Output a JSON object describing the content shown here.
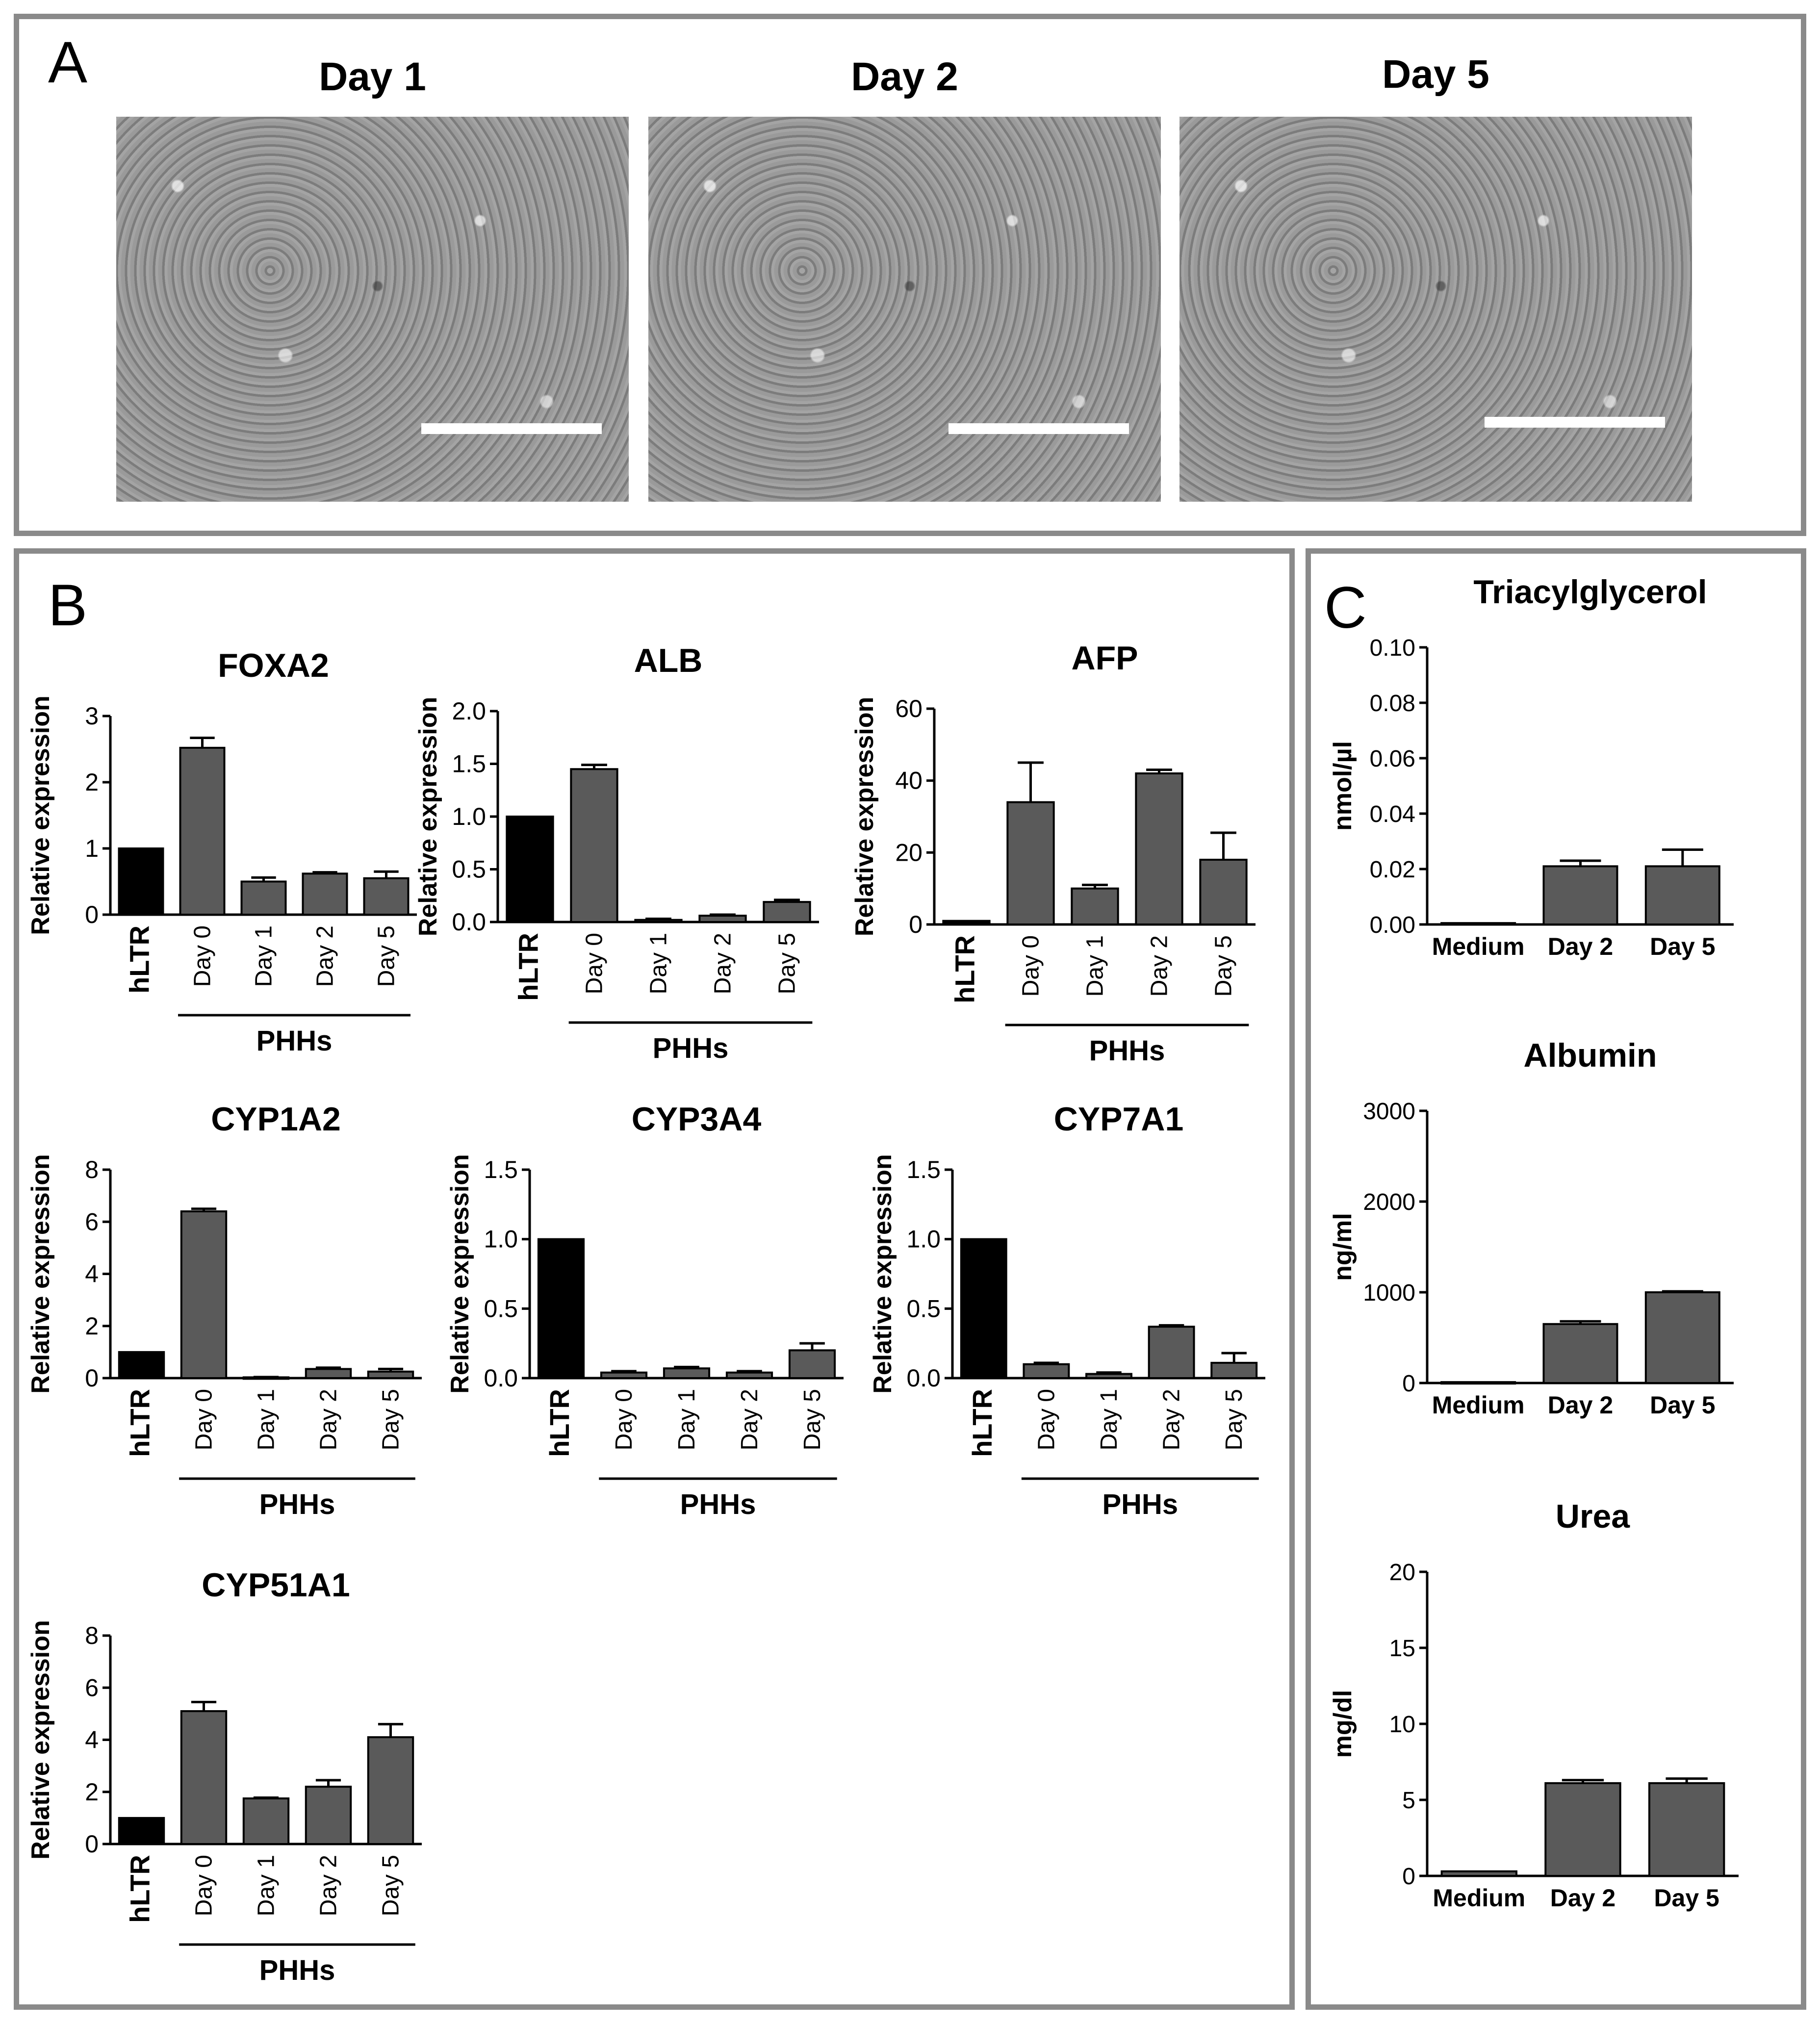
{
  "panel_labels": {
    "a": "A",
    "b": "B",
    "c": "C"
  },
  "micrographs": [
    {
      "title": "Day 1"
    },
    {
      "title": "Day 2"
    },
    {
      "title": "Day 5"
    }
  ],
  "colors": {
    "hLTR": "#000000",
    "PHHs": "#5a5a5a",
    "frame": "#8a8a8a"
  },
  "chart_data": [
    {
      "id": "FOXA2",
      "type": "bar",
      "title": "FOXA2",
      "ylabel": "Relative expression",
      "group_label": "PHHs",
      "categories": [
        "hLTR",
        "Day 0",
        "Day 1",
        "Day 2",
        "Day 5"
      ],
      "values": [
        1.0,
        2.52,
        0.5,
        0.62,
        0.55
      ],
      "errors": [
        0,
        0.15,
        0.06,
        0.02,
        0.1
      ],
      "ylim": [
        0,
        3
      ],
      "yticks": [
        0,
        1,
        2,
        3
      ],
      "ytick_labels": [
        "0",
        "1",
        "2",
        "3"
      ]
    },
    {
      "id": "ALB",
      "type": "bar",
      "title": "ALB",
      "ylabel": "Relative expression",
      "group_label": "PHHs",
      "categories": [
        "hLTR",
        "Day 0",
        "Day 1",
        "Day 2",
        "Day 5"
      ],
      "values": [
        1.0,
        1.45,
        0.02,
        0.06,
        0.19
      ],
      "errors": [
        0,
        0.04,
        0.01,
        0.01,
        0.02
      ],
      "ylim": [
        0,
        2
      ],
      "yticks": [
        0,
        0.5,
        1,
        1.5,
        2
      ],
      "ytick_labels": [
        "0.0",
        "0.5",
        "1.0",
        "1.5",
        "2.0"
      ]
    },
    {
      "id": "AFP",
      "type": "bar",
      "title": "AFP",
      "ylabel": "Relative expression",
      "group_label": "PHHs",
      "categories": [
        "hLTR",
        "Day 0",
        "Day 1",
        "Day 2",
        "Day 5"
      ],
      "values": [
        1,
        34,
        10,
        42,
        18
      ],
      "errors": [
        0,
        11,
        1,
        1,
        7.5
      ],
      "ylim": [
        0,
        60
      ],
      "yticks": [
        0,
        20,
        40,
        60
      ],
      "ytick_labels": [
        "0",
        "20",
        "40",
        "60"
      ]
    },
    {
      "id": "CYP1A2",
      "type": "bar",
      "title": "CYP1A2",
      "ylabel": "Relative expression",
      "group_label": "PHHs",
      "categories": [
        "hLTR",
        "Day 0",
        "Day 1",
        "Day 2",
        "Day 5"
      ],
      "values": [
        1.0,
        6.4,
        0.03,
        0.35,
        0.25
      ],
      "errors": [
        0,
        0.1,
        0.01,
        0.05,
        0.1
      ],
      "ylim": [
        0,
        8
      ],
      "yticks": [
        0,
        2,
        4,
        6,
        8
      ],
      "ytick_labels": [
        "0",
        "2",
        "4",
        "6",
        "8"
      ]
    },
    {
      "id": "CYP3A4",
      "type": "bar",
      "title": "CYP3A4",
      "ylabel": "Relative expression",
      "group_label": "PHHs",
      "categories": [
        "hLTR",
        "Day 0",
        "Day 1",
        "Day 2",
        "Day 5"
      ],
      "values": [
        1.0,
        0.04,
        0.07,
        0.04,
        0.2
      ],
      "errors": [
        0,
        0.01,
        0.01,
        0.01,
        0.05
      ],
      "ylim": [
        0,
        1.5
      ],
      "yticks": [
        0,
        0.5,
        1,
        1.5
      ],
      "ytick_labels": [
        "0.0",
        "0.5",
        "1.0",
        "1.5"
      ]
    },
    {
      "id": "CYP7A1",
      "type": "bar",
      "title": "CYP7A1",
      "ylabel": "Relative expression",
      "group_label": "PHHs",
      "categories": [
        "hLTR",
        "Day 0",
        "Day 1",
        "Day 2",
        "Day 5"
      ],
      "values": [
        1.0,
        0.1,
        0.03,
        0.37,
        0.11
      ],
      "errors": [
        0,
        0.01,
        0.01,
        0.01,
        0.07
      ],
      "ylim": [
        0,
        1.5
      ],
      "yticks": [
        0,
        0.5,
        1,
        1.5
      ],
      "ytick_labels": [
        "0.0",
        "0.5",
        "1.0",
        "1.5"
      ]
    },
    {
      "id": "CYP51A1",
      "type": "bar",
      "title": "CYP51A1",
      "ylabel": "Relative expression",
      "group_label": "PHHs",
      "categories": [
        "hLTR",
        "Day 0",
        "Day 1",
        "Day 2",
        "Day 5"
      ],
      "values": [
        1.0,
        5.1,
        1.75,
        2.2,
        4.1
      ],
      "errors": [
        0,
        0.35,
        0.03,
        0.25,
        0.5
      ],
      "ylim": [
        0,
        8
      ],
      "yticks": [
        0,
        2,
        4,
        6,
        8
      ],
      "ytick_labels": [
        "0",
        "2",
        "4",
        "6",
        "8"
      ]
    },
    {
      "id": "Triacylglycerol",
      "type": "bar",
      "title": "Triacylglycerol",
      "ylabel": "nmol/µl",
      "categories": [
        "Medium",
        "Day 2",
        "Day 5"
      ],
      "values": [
        0.0005,
        0.021,
        0.021
      ],
      "errors": [
        0,
        0.002,
        0.006
      ],
      "ylim": [
        0,
        0.1
      ],
      "yticks": [
        0,
        0.02,
        0.04,
        0.06,
        0.08,
        0.1
      ],
      "ytick_labels": [
        "0.00",
        "0.02",
        "0.04",
        "0.06",
        "0.08",
        "0.10"
      ]
    },
    {
      "id": "Albumin",
      "type": "bar",
      "title": "Albumin",
      "ylabel": "ng/ml",
      "categories": [
        "Medium",
        "Day 2",
        "Day 5"
      ],
      "values": [
        10,
        650,
        1000
      ],
      "errors": [
        0,
        30,
        10
      ],
      "ylim": [
        0,
        3000
      ],
      "yticks": [
        0,
        1000,
        2000,
        3000
      ],
      "ytick_labels": [
        "0",
        "1000",
        "2000",
        "3000"
      ]
    },
    {
      "id": "Urea",
      "type": "bar",
      "title": "Urea",
      "ylabel": "mg/dl",
      "categories": [
        "Medium",
        "Day 2",
        "Day 5"
      ],
      "values": [
        0.3,
        6.1,
        6.1
      ],
      "errors": [
        0,
        0.2,
        0.3
      ],
      "ylim": [
        0,
        20
      ],
      "yticks": [
        0,
        5,
        10,
        15,
        20
      ],
      "ytick_labels": [
        "0",
        "5",
        "10",
        "15",
        "20"
      ]
    }
  ]
}
